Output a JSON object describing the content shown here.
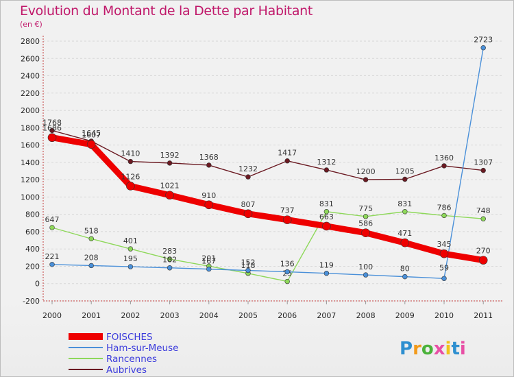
{
  "header": {
    "title": "Evolution du Montant de la Dette par Habitant",
    "subtitle": "(en €)"
  },
  "logo": {
    "text": "Proxiti"
  },
  "colors": {
    "title": "#c0186a",
    "legend_text": "#3b3bdc",
    "grid": "#d7d7d7"
  },
  "chart_data": {
    "type": "line",
    "title": "Evolution du Montant de la Dette par Habitant",
    "subtitle": "(en €)",
    "xlabel": "",
    "ylabel": "",
    "x": [
      "2000",
      "2001",
      "2002",
      "2003",
      "2004",
      "2005",
      "2006",
      "2007",
      "2008",
      "2009",
      "2010",
      "2011"
    ],
    "ylim": [
      -200,
      2800
    ],
    "yticks": [
      -200,
      0,
      200,
      400,
      600,
      800,
      1000,
      1200,
      1400,
      1600,
      1800,
      2000,
      2200,
      2400,
      2600,
      2800
    ],
    "grid": "horizontal dashed",
    "legend_position": "bottom-left",
    "series": [
      {
        "name": "Aubrives",
        "color": "#6b1a22",
        "values": [
          1768,
          1645,
          1410,
          1392,
          1368,
          1232,
          1417,
          1312,
          1200,
          1205,
          1360,
          1307
        ]
      },
      {
        "name": "Rancennes",
        "color": "#8ed85a",
        "values": [
          647,
          518,
          401,
          283,
          201,
          118,
          25,
          831,
          775,
          831,
          786,
          748
        ]
      },
      {
        "name": "Ham-sur-Meuse",
        "color": "#4a90d9",
        "values": [
          221,
          208,
          195,
          182,
          167,
          152,
          136,
          119,
          100,
          80,
          59,
          2723
        ]
      },
      {
        "name": "FOISCHES",
        "color": "#ee0000",
        "values": [
          1686,
          1607,
          1126,
          1021,
          910,
          807,
          737,
          663,
          586,
          471,
          345,
          270
        ]
      }
    ]
  }
}
